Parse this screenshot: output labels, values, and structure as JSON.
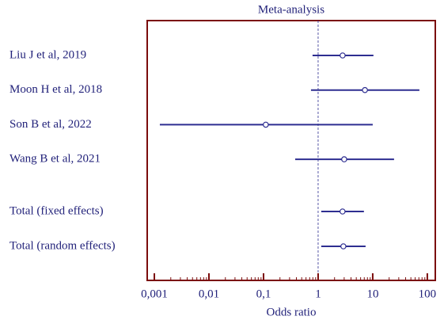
{
  "chart_data": {
    "type": "forest",
    "title": "Meta-analysis",
    "xlabel": "Odds ratio",
    "xscale": "log",
    "xlim": [
      0.00074,
      140
    ],
    "xticks": [
      {
        "value": 0.001,
        "label": "0,001"
      },
      {
        "value": 0.01,
        "label": "0,01"
      },
      {
        "value": 0.1,
        "label": "0,1"
      },
      1,
      10,
      100
    ],
    "xminorticks": [
      0.002,
      0.003,
      0.004,
      0.005,
      0.006,
      0.007,
      0.008,
      0.009,
      0.02,
      0.03,
      0.04,
      0.05,
      0.06,
      0.07,
      0.08,
      0.09,
      0.2,
      0.3,
      0.4,
      0.5,
      0.6,
      0.7,
      0.8,
      0.9,
      2,
      3,
      4,
      5,
      6,
      7,
      8,
      9,
      20,
      30,
      40,
      50,
      60,
      70,
      80,
      90
    ],
    "reference_line": 1,
    "color": "#2e2e91",
    "frame_color": "#7b0c0c",
    "studies": [
      {
        "label": "Liu J et al, 2019",
        "estimate": 2.81,
        "lower": 0.79,
        "upper": 10.3
      },
      {
        "label": "Moon H et al, 2018",
        "estimate": 7.2,
        "lower": 0.74,
        "upper": 71.6
      },
      {
        "label": "Son B et al, 2022",
        "estimate": 0.11,
        "lower": 0.00126,
        "upper": 10
      },
      {
        "label": "Wang B et al, 2021",
        "estimate": 3.0,
        "lower": 0.38,
        "upper": 24.6
      }
    ],
    "totals": [
      {
        "label": "Total (fixed effects)",
        "estimate": 2.8,
        "lower": 1.14,
        "upper": 6.9
      },
      {
        "label": "Total (random effects)",
        "estimate": 2.9,
        "lower": 1.14,
        "upper": 7.4
      }
    ]
  }
}
